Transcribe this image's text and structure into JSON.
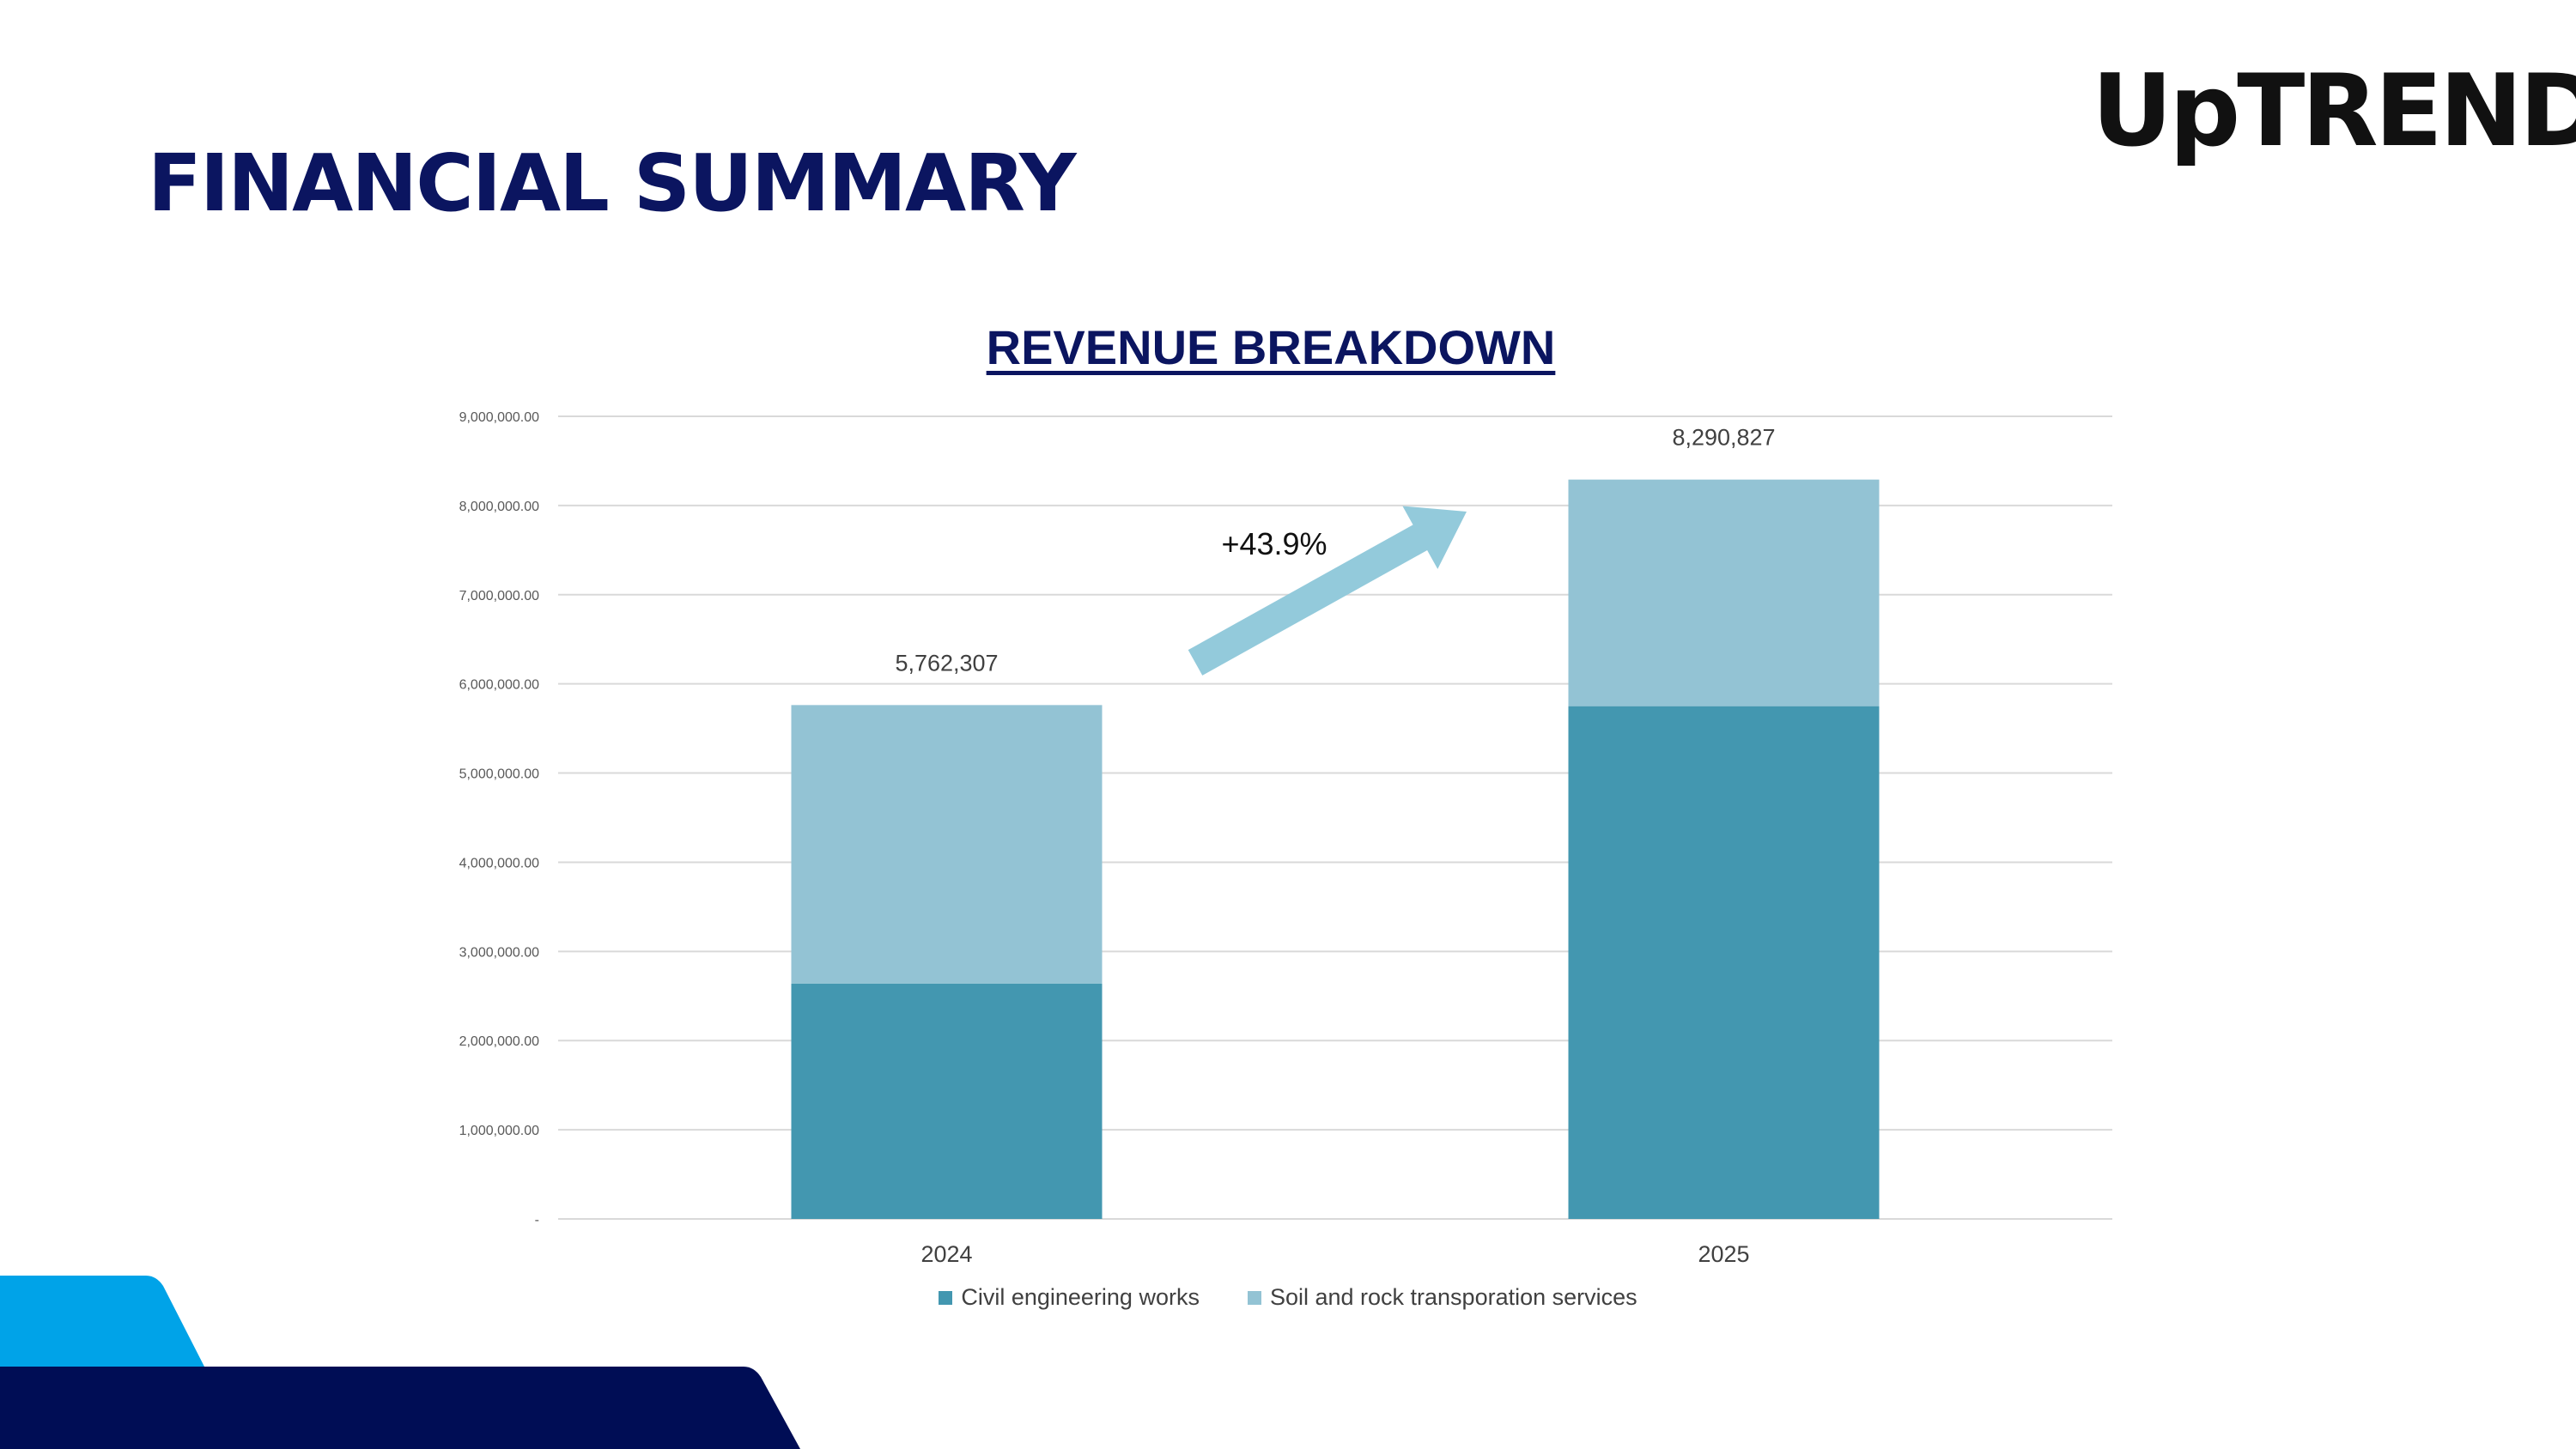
{
  "header": {
    "title": "FINANCIAL SUMMARY",
    "logo_text": "UpTREND"
  },
  "colors": {
    "title": "#0b1560",
    "civil": "#4397b0",
    "soil": "#93c3d4",
    "arrow": "#93cadb",
    "grid": "#d9d9d9",
    "deco_light": "#00a3e8",
    "deco_dark": "#000d55"
  },
  "chart_data": {
    "type": "bar",
    "stacked": true,
    "title": "REVENUE BREAKDOWN",
    "categories": [
      "2024",
      "2025"
    ],
    "series": [
      {
        "name": "Civil engineering works",
        "values": [
          2640000,
          5750000
        ]
      },
      {
        "name": "Soil and rock transporation services",
        "values": [
          3122307,
          2540827
        ]
      }
    ],
    "totals": [
      5762307,
      8290827
    ],
    "total_labels": [
      "5,762,307",
      "8,290,827"
    ],
    "ylim": [
      0,
      9000000
    ],
    "yticks": [
      0,
      1000000,
      2000000,
      3000000,
      4000000,
      5000000,
      6000000,
      7000000,
      8000000,
      9000000
    ],
    "ytick_labels": [
      "-",
      "1,000,000.00",
      "2,000,000.00",
      "3,000,000.00",
      "4,000,000.00",
      "5,000,000.00",
      "6,000,000.00",
      "7,000,000.00",
      "8,000,000.00",
      "9,000,000.00"
    ],
    "annotation": "+43.9%",
    "grid": true,
    "legend": "bottom"
  }
}
